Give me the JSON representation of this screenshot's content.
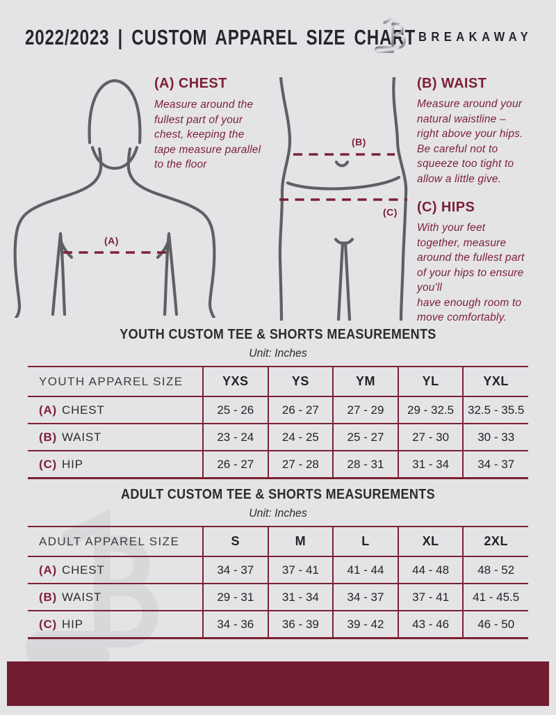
{
  "colors": {
    "background": "#e4e4e6",
    "accent_maroon": "#7c1f35",
    "table_border_maroon": "#7b2034",
    "footer_maroon": "#721c31",
    "figure_gray": "#5e6064",
    "title_dark": "#26272b"
  },
  "header": {
    "title": "2022/2023 | CUSTOM APPAREL SIZE CHART",
    "brand": "BREAKAWAY",
    "logo_icon": "breakaway-b-logo"
  },
  "figures": {
    "chest_marker": "(A)",
    "waist_marker": "(B)",
    "hip_marker": "(C)"
  },
  "instructions": {
    "chest": {
      "heading": "(A) CHEST",
      "body": "Measure around the\nfullest part of your\nchest, keeping the\ntape measure parallel\nto the floor"
    },
    "waist": {
      "heading": "(B) WAIST",
      "body": "Measure around your\nnatural waistline –\nright above your hips.\nBe careful not to\nsqueeze too tight to\nallow a little give."
    },
    "hips": {
      "heading": "(C) HIPS",
      "body": "With your feet\ntogether, measure\naround the fullest part\nof your hips to ensure\nyou'll\nhave enough room to\nmove comfortably."
    }
  },
  "youth_section": {
    "title": "YOUTH CUSTOM TEE & SHORTS MEASUREMENTS",
    "unit": "Unit: Inches",
    "table": {
      "size_label": "YOUTH APPAREL SIZE",
      "columns": [
        "YXS",
        "YS",
        "YM",
        "YL",
        "YXL"
      ],
      "rows": [
        {
          "prefix": "(A)",
          "label": "CHEST",
          "values": [
            "25 - 26",
            "26 - 27",
            "27 - 29",
            "29 - 32.5",
            "32.5 - 35.5"
          ]
        },
        {
          "prefix": "(B)",
          "label": "WAIST",
          "values": [
            "23 - 24",
            "24 - 25",
            "25 - 27",
            "27 - 30",
            "30 - 33"
          ]
        },
        {
          "prefix": "(C)",
          "label": "HIP",
          "values": [
            "26 - 27",
            "27 - 28",
            "28 - 31",
            "31 - 34",
            "34 - 37"
          ]
        }
      ]
    }
  },
  "adult_section": {
    "title": "ADULT CUSTOM TEE & SHORTS MEASUREMENTS",
    "unit": "Unit: Inches",
    "table": {
      "size_label": "ADULT APPAREL SIZE",
      "columns": [
        "S",
        "M",
        "L",
        "XL",
        "2XL"
      ],
      "rows": [
        {
          "prefix": "(A)",
          "label": "CHEST",
          "values": [
            "34 - 37",
            "37 - 41",
            "41 - 44",
            "44 - 48",
            "48 - 52"
          ]
        },
        {
          "prefix": "(B)",
          "label": "WAIST",
          "values": [
            "29 - 31",
            "31 - 34",
            "34 - 37",
            "37 - 41",
            "41 - 45.5"
          ]
        },
        {
          "prefix": "(C)",
          "label": "HIP",
          "values": [
            "34 - 36",
            "36 - 39",
            "39 - 42",
            "43 - 46",
            "46 - 50"
          ]
        }
      ]
    }
  }
}
